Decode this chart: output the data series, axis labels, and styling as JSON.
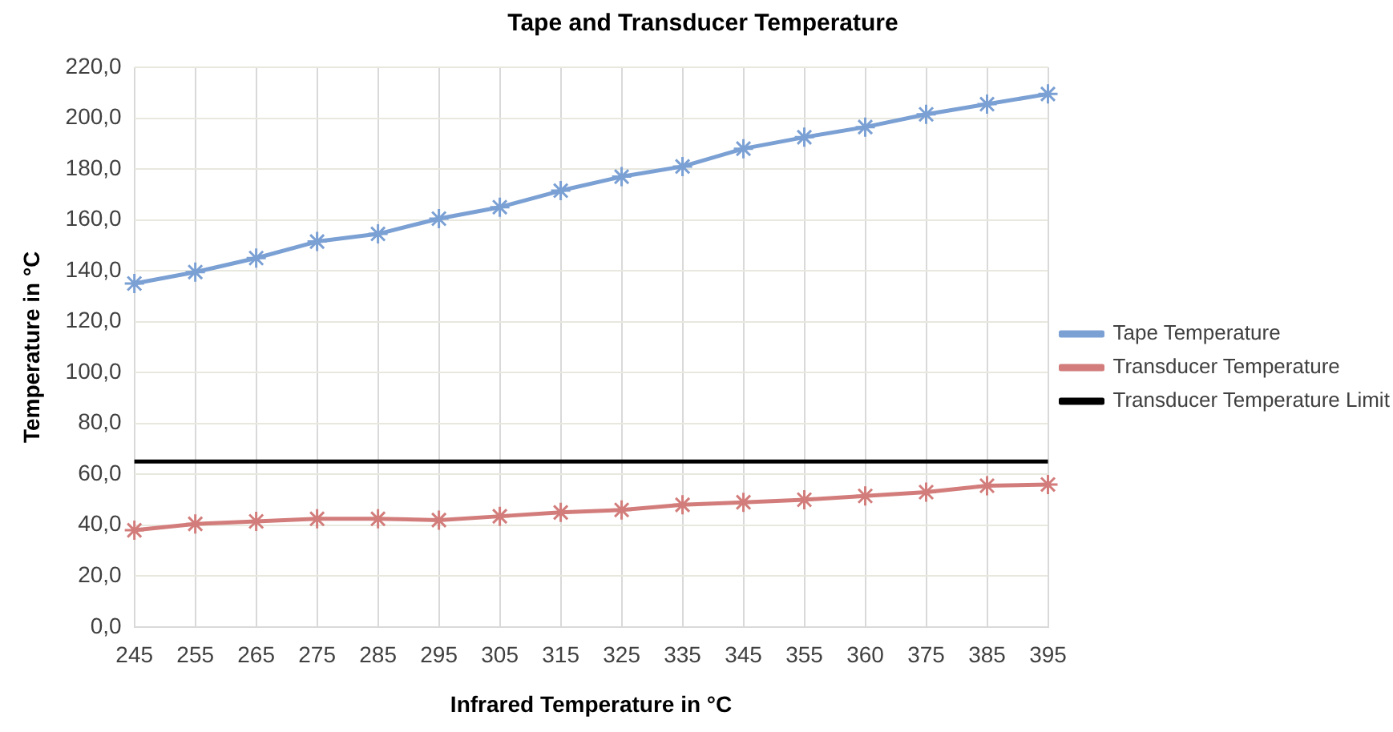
{
  "chart_data": {
    "type": "line",
    "title": "Tape and Transducer Temperature",
    "xlabel": "Infrared Temperature in °C",
    "ylabel": "Temperature in °C",
    "categories": [
      "245",
      "255",
      "265",
      "275",
      "285",
      "295",
      "305",
      "315",
      "325",
      "335",
      "345",
      "355",
      "360",
      "375",
      "385",
      "395"
    ],
    "series": [
      {
        "name": "Tape Temperature",
        "color": "#7ba0d4",
        "marker": "cross",
        "values": [
          135,
          139.5,
          145,
          151.5,
          154.5,
          160.5,
          165,
          171.5,
          177,
          181,
          188,
          192.5,
          196.5,
          201.5,
          205.5,
          209.5
        ]
      },
      {
        "name": "Transducer Temperature",
        "color": "#d27d7b",
        "marker": "cross",
        "values": [
          38,
          40.5,
          41.5,
          42.5,
          42.5,
          42,
          43.5,
          45,
          46,
          48,
          49,
          50,
          51.5,
          53,
          55.5,
          56
        ]
      },
      {
        "name": "Transducer Temperature Limit",
        "color": "#000000",
        "marker": "none",
        "values": [
          65,
          65,
          65,
          65,
          65,
          65,
          65,
          65,
          65,
          65,
          65,
          65,
          65,
          65,
          65,
          65
        ]
      }
    ],
    "ylim": [
      0,
      220
    ],
    "yticks": [
      {
        "value": 0,
        "label": "0,0"
      },
      {
        "value": 20,
        "label": "20,0"
      },
      {
        "value": 40,
        "label": "40,0"
      },
      {
        "value": 60,
        "label": "60,0"
      },
      {
        "value": 80,
        "label": "80,0"
      },
      {
        "value": 100,
        "label": "100,0"
      },
      {
        "value": 120,
        "label": "120,0"
      },
      {
        "value": 140,
        "label": "140,0"
      },
      {
        "value": 160,
        "label": "160,0"
      },
      {
        "value": 180,
        "label": "180,0"
      },
      {
        "value": 200,
        "label": "200,0"
      },
      {
        "value": 220,
        "label": "220,0"
      }
    ],
    "grid": true,
    "legend": "right",
    "line_style": "solid"
  }
}
